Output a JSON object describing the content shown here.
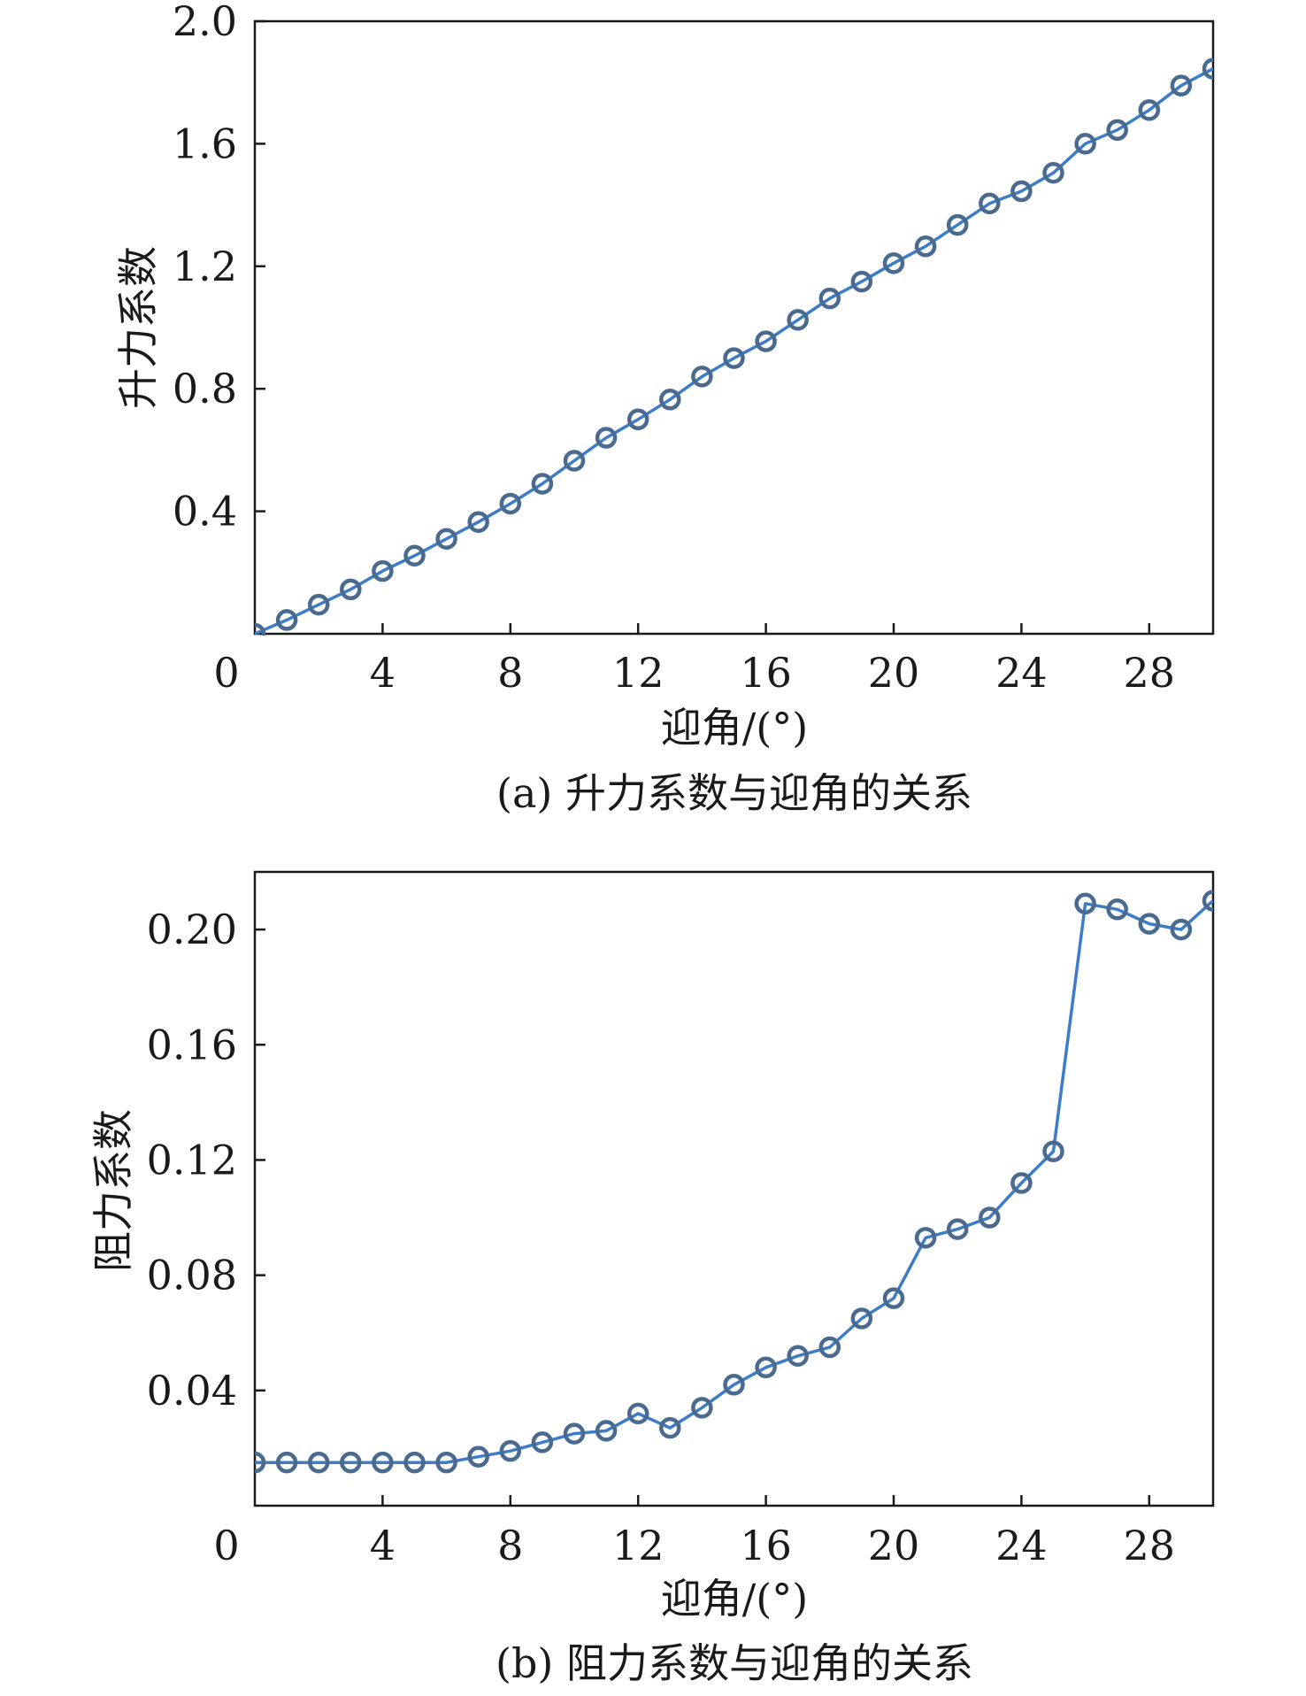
{
  "chart_data": [
    {
      "type": "line",
      "caption": "(a) 升力系数与迎角的关系",
      "xlabel": "迎角/(°)",
      "ylabel": "升力系数",
      "xlim": [
        0,
        30
      ],
      "ylim": [
        0,
        2.0
      ],
      "xticks": [
        {
          "v": 0,
          "label": "0"
        },
        {
          "v": 4,
          "label": "4"
        },
        {
          "v": 8,
          "label": "8"
        },
        {
          "v": 12,
          "label": "12"
        },
        {
          "v": 16,
          "label": "16"
        },
        {
          "v": 20,
          "label": "20"
        },
        {
          "v": 24,
          "label": "24"
        },
        {
          "v": 28,
          "label": "28"
        }
      ],
      "yticks": [
        {
          "v": 0.4,
          "label": "0.4"
        },
        {
          "v": 0.8,
          "label": "0.8"
        },
        {
          "v": 1.2,
          "label": "1.2"
        },
        {
          "v": 1.6,
          "label": "1.6"
        },
        {
          "v": 2.0,
          "label": "2.0"
        }
      ],
      "x": [
        0,
        1,
        2,
        3,
        4,
        5,
        6,
        7,
        8,
        9,
        10,
        11,
        12,
        13,
        14,
        15,
        16,
        17,
        18,
        19,
        20,
        21,
        22,
        23,
        24,
        25,
        26,
        27,
        28,
        29,
        30
      ],
      "y": [
        0.0,
        0.045,
        0.095,
        0.145,
        0.205,
        0.255,
        0.31,
        0.365,
        0.425,
        0.49,
        0.565,
        0.64,
        0.7,
        0.765,
        0.84,
        0.9,
        0.955,
        1.025,
        1.095,
        1.15,
        1.21,
        1.265,
        1.335,
        1.405,
        1.445,
        1.505,
        1.6,
        1.645,
        1.71,
        1.79,
        1.845
      ],
      "grid": false,
      "colors": {
        "line": "#3d7cc9",
        "marker": "#4a6a8f"
      }
    },
    {
      "type": "line",
      "caption": "(b) 阻力系数与迎角的关系",
      "xlabel": "迎角/(°)",
      "ylabel": "阻力系数",
      "xlim": [
        0,
        30
      ],
      "ylim": [
        0,
        0.22
      ],
      "xticks": [
        {
          "v": 0,
          "label": "0"
        },
        {
          "v": 4,
          "label": "4"
        },
        {
          "v": 8,
          "label": "8"
        },
        {
          "v": 12,
          "label": "12"
        },
        {
          "v": 16,
          "label": "16"
        },
        {
          "v": 20,
          "label": "20"
        },
        {
          "v": 24,
          "label": "24"
        },
        {
          "v": 28,
          "label": "28"
        }
      ],
      "yticks": [
        {
          "v": 0.04,
          "label": "0.04"
        },
        {
          "v": 0.08,
          "label": "0.08"
        },
        {
          "v": 0.12,
          "label": "0.12"
        },
        {
          "v": 0.16,
          "label": "0.16"
        },
        {
          "v": 0.2,
          "label": "0.20"
        }
      ],
      "x": [
        0,
        1,
        2,
        3,
        4,
        5,
        6,
        7,
        8,
        9,
        10,
        11,
        12,
        13,
        14,
        15,
        16,
        17,
        18,
        19,
        20,
        21,
        22,
        23,
        24,
        25,
        26,
        27,
        28,
        29,
        30
      ],
      "y": [
        0.015,
        0.015,
        0.015,
        0.015,
        0.015,
        0.015,
        0.015,
        0.017,
        0.019,
        0.022,
        0.025,
        0.026,
        0.032,
        0.027,
        0.034,
        0.042,
        0.048,
        0.052,
        0.055,
        0.065,
        0.072,
        0.093,
        0.096,
        0.1,
        0.112,
        0.123,
        0.209,
        0.207,
        0.202,
        0.2,
        0.21
      ],
      "grid": false,
      "colors": {
        "line": "#3d7cc9",
        "marker": "#4a6a8f"
      }
    }
  ]
}
